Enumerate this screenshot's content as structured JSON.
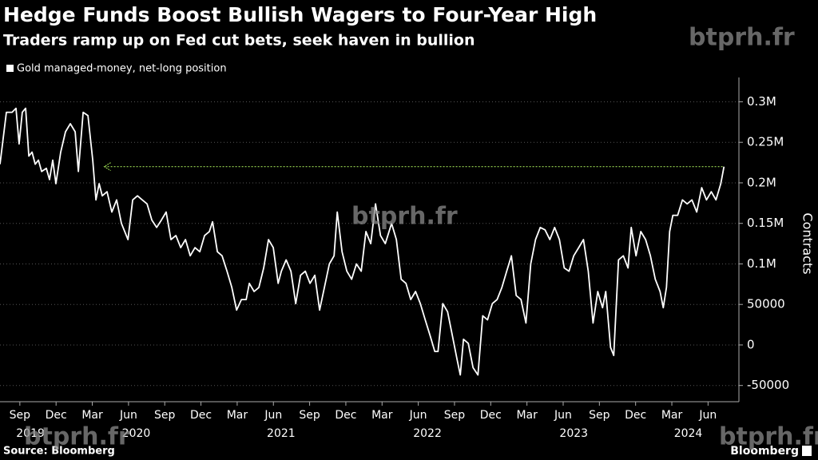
{
  "chart_data": {
    "type": "line",
    "title": "Hedge Funds Boost Bullish Wagers to Four-Year High",
    "subtitle": "Traders ramp up on Fed cut bets, seek haven in bullion",
    "y_label": "Contracts",
    "source": "Source: Bloomberg",
    "brand": "Bloomberg",
    "watermark": "btprh.fr",
    "legend": "top-left",
    "grid": true,
    "x": [
      2019.53,
      2019.574,
      2019.613,
      2019.64,
      2019.662,
      2019.684,
      2019.707,
      2019.729,
      2019.751,
      2019.773,
      2019.795,
      2019.817,
      2019.85,
      2019.872,
      2019.894,
      2019.916,
      2019.949,
      2019.982,
      2020.015,
      2020.049,
      2020.071,
      2020.104,
      2020.137,
      2020.17,
      2020.192,
      2020.214,
      2020.236,
      2020.269,
      2020.302,
      2020.335,
      2020.368,
      2020.413,
      2020.446,
      2020.479,
      2020.512,
      2020.545,
      2020.578,
      2020.611,
      2020.644,
      2020.677,
      2020.71,
      2020.744,
      2020.777,
      2020.81,
      2020.843,
      2020.876,
      2020.909,
      2020.942,
      2020.975,
      2020.997,
      2021.03,
      2021.063,
      2021.097,
      2021.13,
      2021.163,
      2021.196,
      2021.229,
      2021.251,
      2021.284,
      2021.317,
      2021.35,
      2021.383,
      2021.416,
      2021.45,
      2021.472,
      2021.505,
      2021.538,
      2021.571,
      2021.604,
      2021.637,
      2021.67,
      2021.703,
      2021.736,
      2021.769,
      2021.803,
      2021.836,
      2021.858,
      2021.891,
      2021.924,
      2021.957,
      2021.99,
      2022.023,
      2022.056,
      2022.089,
      2022.122,
      2022.156,
      2022.189,
      2022.233,
      2022.266,
      2022.299,
      2022.332,
      2022.365,
      2022.398,
      2022.431,
      2022.465,
      2022.498,
      2022.531,
      2022.553,
      2022.586,
      2022.619,
      2022.652,
      2022.685,
      2022.707,
      2022.729,
      2022.762,
      2022.795,
      2022.829,
      2022.862,
      2022.895,
      2022.928,
      2022.961,
      2022.994,
      2023.027,
      2023.06,
      2023.093,
      2023.126,
      2023.16,
      2023.193,
      2023.226,
      2023.259,
      2023.292,
      2023.325,
      2023.358,
      2023.391,
      2023.424,
      2023.457,
      2023.49,
      2023.524,
      2023.557,
      2023.59,
      2023.623,
      2023.656,
      2023.689,
      2023.711,
      2023.744,
      2023.766,
      2023.799,
      2023.832,
      2023.865,
      2023.887,
      2023.92,
      2023.953,
      2023.986,
      2024.019,
      2024.053,
      2024.086,
      2024.108,
      2024.13,
      2024.152,
      2024.174,
      2024.207,
      2024.24,
      2024.273,
      2024.306,
      2024.339,
      2024.373,
      2024.406,
      2024.439,
      2024.472,
      2024.505,
      2024.527
    ],
    "series": [
      {
        "name": "Gold managed-money, net-long position",
        "color": "#ffffff",
        "values": [
          223000,
          287000,
          287000,
          292000,
          248000,
          287000,
          292000,
          233000,
          238000,
          223000,
          228000,
          214000,
          218000,
          204000,
          228000,
          199000,
          238000,
          263000,
          273000,
          263000,
          214000,
          287000,
          283000,
          228000,
          179000,
          199000,
          184000,
          189000,
          164000,
          179000,
          150000,
          130000,
          179000,
          184000,
          179000,
          174000,
          154000,
          145000,
          154000,
          164000,
          130000,
          135000,
          120000,
          130000,
          110000,
          120000,
          115000,
          135000,
          140000,
          152000,
          115000,
          110000,
          91000,
          71000,
          43000,
          56000,
          56000,
          76000,
          66000,
          71000,
          95000,
          130000,
          120000,
          76000,
          91000,
          105000,
          91000,
          51000,
          86000,
          91000,
          76000,
          86000,
          43000,
          71000,
          100000,
          110000,
          164000,
          115000,
          91000,
          81000,
          100000,
          91000,
          140000,
          125000,
          174000,
          135000,
          125000,
          150000,
          130000,
          81000,
          76000,
          56000,
          66000,
          51000,
          31000,
          12000,
          -8000,
          -8000,
          51000,
          41000,
          12000,
          -18000,
          -37000,
          7000,
          2000,
          -28000,
          -37000,
          36000,
          31000,
          51000,
          56000,
          71000,
          91000,
          110000,
          61000,
          56000,
          27000,
          100000,
          130000,
          145000,
          142000,
          130000,
          145000,
          130000,
          95000,
          91000,
          110000,
          120000,
          130000,
          91000,
          27000,
          66000,
          46000,
          66000,
          -3000,
          -13000,
          105000,
          110000,
          95000,
          145000,
          110000,
          140000,
          130000,
          110000,
          81000,
          66000,
          46000,
          71000,
          140000,
          160000,
          160000,
          179000,
          174000,
          179000,
          164000,
          194000,
          179000,
          189000,
          179000,
          199000,
          220000
        ]
      }
    ],
    "reference_line": {
      "value": 220000,
      "from": 2020.25,
      "to": 2024.527,
      "color": "#8bc34a"
    },
    "xlim": [
      2019.53,
      2024.63
    ],
    "ylim": [
      -70000,
      330000
    ],
    "yticks": [
      {
        "value": 300000,
        "label": "0.3M"
      },
      {
        "value": 250000,
        "label": "0.25M"
      },
      {
        "value": 200000,
        "label": "0.2M"
      },
      {
        "value": 150000,
        "label": "0.15M"
      },
      {
        "value": 100000,
        "label": "0.1M"
      },
      50000,
      0,
      -50000
    ],
    "xticks": [
      {
        "value": 2019.667,
        "label": "Sep"
      },
      {
        "value": 2019.917,
        "label": "Dec"
      },
      {
        "value": 2020.167,
        "label": "Mar"
      },
      {
        "value": 2020.417,
        "label": "Jun"
      },
      {
        "value": 2020.667,
        "label": "Sep"
      },
      {
        "value": 2020.917,
        "label": "Dec"
      },
      {
        "value": 2021.167,
        "label": "Mar"
      },
      {
        "value": 2021.417,
        "label": "Jun"
      },
      {
        "value": 2021.667,
        "label": "Sep"
      },
      {
        "value": 2021.917,
        "label": "Dec"
      },
      {
        "value": 2022.167,
        "label": "Mar"
      },
      {
        "value": 2022.417,
        "label": "Jun"
      },
      {
        "value": 2022.667,
        "label": "Sep"
      },
      {
        "value": 2022.917,
        "label": "Dec"
      },
      {
        "value": 2023.167,
        "label": "Mar"
      },
      {
        "value": 2023.417,
        "label": "Jun"
      },
      {
        "value": 2023.667,
        "label": "Sep"
      },
      {
        "value": 2023.917,
        "label": "Dec"
      },
      {
        "value": 2024.167,
        "label": "Mar"
      },
      {
        "value": 2024.417,
        "label": "Jun"
      }
    ],
    "year_labels": [
      {
        "value": 2019.74,
        "label": "2019"
      },
      {
        "value": 2020.47,
        "label": "2020"
      },
      {
        "value": 2021.47,
        "label": "2021"
      },
      {
        "value": 2022.48,
        "label": "2022"
      },
      {
        "value": 2023.49,
        "label": "2023"
      },
      {
        "value": 2024.28,
        "label": "2024"
      }
    ]
  }
}
